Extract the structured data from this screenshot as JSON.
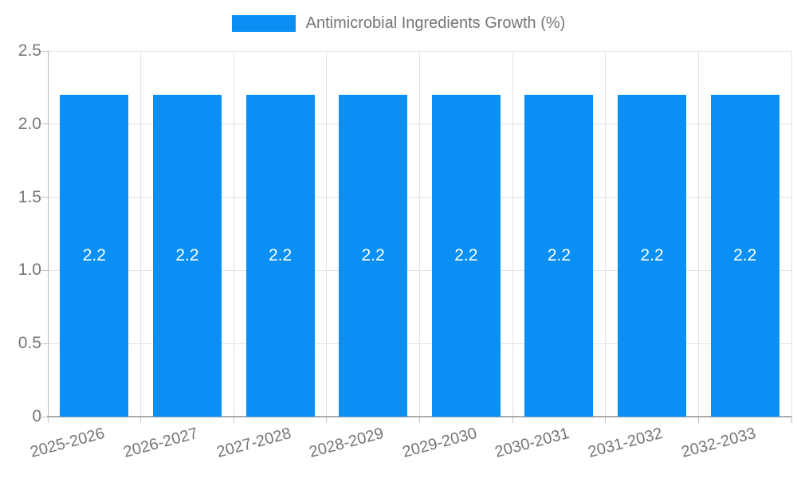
{
  "legend": {
    "label": "Antimicrobial Ingredients Growth (%)"
  },
  "colors": {
    "bar": "#0a90f4",
    "legend_swatch": "#0a90f4",
    "axis_text": "#757575",
    "gridline": "#e3e3e3",
    "axis_line": "#b0b0b0",
    "bar_label_text": "#ffffff"
  },
  "chart_data": {
    "type": "bar",
    "title": "Antimicrobial Ingredients Growth (%)",
    "categories": [
      "2025-2026",
      "2026-2027",
      "2027-2028",
      "2028-2029",
      "2029-2030",
      "2030-2031",
      "2031-2032",
      "2032-2033"
    ],
    "values": [
      2.2,
      2.2,
      2.2,
      2.2,
      2.2,
      2.2,
      2.2,
      2.2
    ],
    "value_labels": [
      "2.2",
      "2.2",
      "2.2",
      "2.2",
      "2.2",
      "2.2",
      "2.2",
      "2.2"
    ],
    "xlabel": "",
    "ylabel": "",
    "ylim": [
      0,
      2.5
    ],
    "yticks": [
      0,
      0.5,
      1.0,
      1.5,
      2.0,
      2.5
    ],
    "ytick_labels": [
      "0",
      "0.5",
      "1.0",
      "1.5",
      "2.0",
      "2.5"
    ],
    "grid": true,
    "legend_position": "top",
    "bar_label_position": "center"
  }
}
